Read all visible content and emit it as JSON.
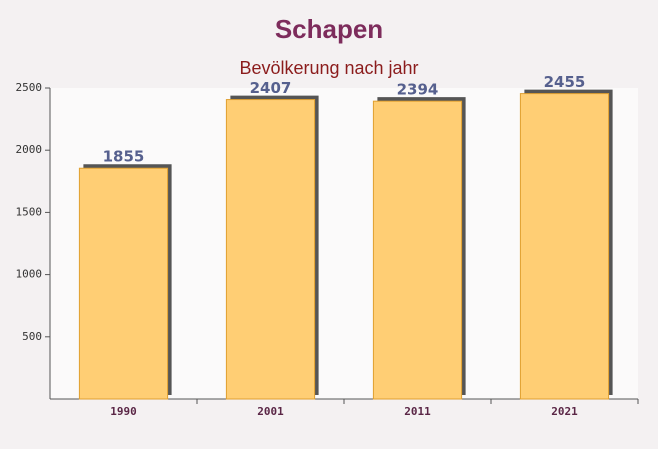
{
  "chart_data": {
    "type": "bar",
    "title": "Schapen",
    "subtitle": "Bevölkerung nach jahr",
    "categories": [
      "1990",
      "2001",
      "2011",
      "2021"
    ],
    "values": [
      1855,
      2407,
      2394,
      2455
    ],
    "color": "#ffc55c",
    "ylim": [
      0,
      2500
    ],
    "yticks": [
      500,
      1000,
      1500,
      2000,
      2500
    ]
  }
}
